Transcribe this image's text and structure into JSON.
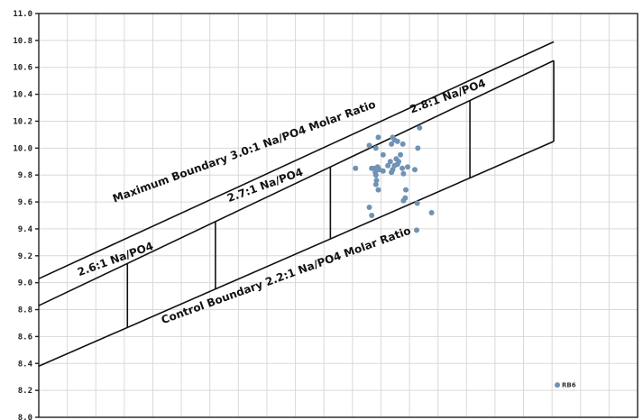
{
  "chart_data": {
    "type": "scatter",
    "title": "",
    "xlabel": "",
    "ylabel": "",
    "xlim": [
      0,
      1
    ],
    "ylim": [
      8.0,
      11.0
    ],
    "y_ticks": [
      "8.0",
      "8.2",
      "8.4",
      "8.6",
      "8.8",
      "9.0",
      "9.2",
      "9.4",
      "9.6",
      "9.8",
      "10.0",
      "10.2",
      "10.4",
      "10.6",
      "10.8",
      "11.0"
    ],
    "grid": true,
    "x_gridlines": 21,
    "boundaries": [
      {
        "name": "Maximum Boundary 3.0:1 Na/PO4 Molar Ratio",
        "x": [
          0.0,
          0.86
        ],
        "y": [
          9.03,
          10.79
        ]
      },
      {
        "name": "2.8:1 ratio line",
        "x": [
          0.0,
          0.86
        ],
        "y": [
          8.83,
          10.65
        ]
      },
      {
        "name": "Control Boundary 2.2:1 Na/PO4 Molar Ratio",
        "x": [
          0.0,
          0.86
        ],
        "y": [
          8.38,
          10.05
        ]
      }
    ],
    "ratio_dividers": [
      0.148,
      0.295,
      0.487,
      0.72,
      0.86
    ],
    "annotations": [
      {
        "text": "Maximum Boundary 3.0:1 Na/PO4 Molar Ratio",
        "x": 0.345,
        "y": 9.95,
        "angle": -20
      },
      {
        "text": "2.8:1 Na/PO4",
        "x": 0.685,
        "y": 10.36,
        "angle": -20
      },
      {
        "text": "2.7:1 Na/PO4",
        "x": 0.38,
        "y": 9.7,
        "angle": -20
      },
      {
        "text": "2.6:1 Na/PO4",
        "x": 0.13,
        "y": 9.15,
        "angle": -20
      },
      {
        "text": "Control Boundary 2.2:1 Na/PO4 Molar Ratio",
        "x": 0.415,
        "y": 9.03,
        "angle": -20
      }
    ],
    "series": [
      {
        "points": [
          [
            0.529,
            9.85
          ],
          [
            0.556,
            9.85
          ],
          [
            0.561,
            9.85
          ],
          [
            0.562,
            9.82
          ],
          [
            0.563,
            9.8
          ],
          [
            0.566,
            9.86
          ],
          [
            0.569,
            9.84
          ],
          [
            0.575,
            9.83
          ],
          [
            0.583,
            9.87
          ],
          [
            0.591,
            9.84
          ],
          [
            0.599,
            9.88
          ],
          [
            0.607,
            9.85
          ],
          [
            0.616,
            9.86
          ],
          [
            0.575,
            9.95
          ],
          [
            0.563,
            10.0
          ],
          [
            0.552,
            10.02
          ],
          [
            0.567,
            10.08
          ],
          [
            0.591,
            10.08
          ],
          [
            0.594,
            10.06
          ],
          [
            0.599,
            10.05
          ],
          [
            0.589,
            10.03
          ],
          [
            0.608,
            10.03
          ],
          [
            0.604,
            9.95
          ],
          [
            0.597,
            9.92
          ],
          [
            0.587,
            9.9
          ],
          [
            0.594,
            9.87
          ],
          [
            0.601,
            9.9
          ],
          [
            0.589,
            9.82
          ],
          [
            0.609,
            9.81
          ],
          [
            0.633,
            10.0
          ],
          [
            0.636,
            10.15
          ],
          [
            0.628,
            9.84
          ],
          [
            0.564,
            9.76
          ],
          [
            0.563,
            9.73
          ],
          [
            0.567,
            9.69
          ],
          [
            0.613,
            9.69
          ],
          [
            0.612,
            9.63
          ],
          [
            0.609,
            9.61
          ],
          [
            0.632,
            9.59
          ],
          [
            0.552,
            9.56
          ],
          [
            0.556,
            9.5
          ],
          [
            0.656,
            9.52
          ],
          [
            0.631,
            9.39
          ]
        ]
      },
      {
        "name": "RB6",
        "points": [
          [
            0.866,
            8.24
          ]
        ]
      }
    ]
  }
}
